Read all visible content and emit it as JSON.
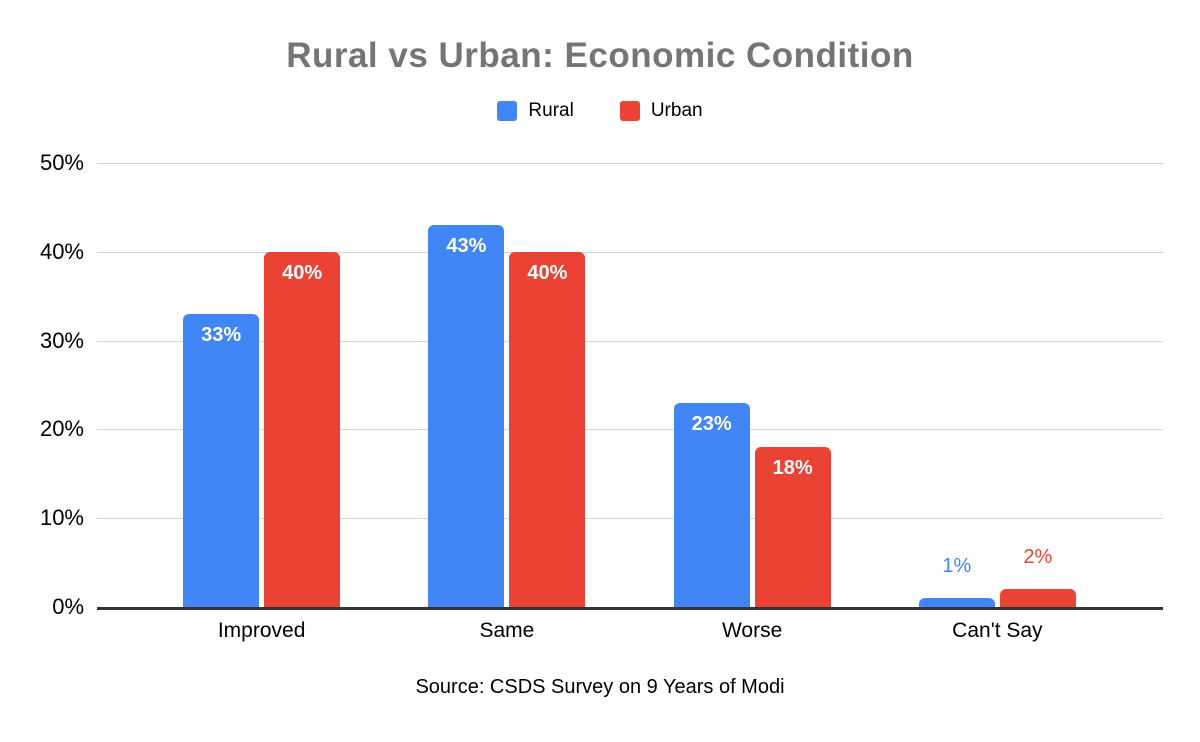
{
  "chart_data": {
    "type": "bar",
    "title": "Rural vs Urban: Economic Condition",
    "categories": [
      "Improved",
      "Same",
      "Worse",
      "Can't Say"
    ],
    "series": [
      {
        "name": "Rural",
        "color": "#4285F4",
        "values": [
          33,
          43,
          23,
          1
        ]
      },
      {
        "name": "Urban",
        "color": "#EA4335",
        "values": [
          40,
          40,
          18,
          2
        ]
      }
    ],
    "value_suffix": "%",
    "ylim": [
      0,
      50
    ],
    "yticks": [
      "0%",
      "10%",
      "20%",
      "30%",
      "40%",
      "50%"
    ],
    "grid": true,
    "legend_position": "top",
    "data_label_inside_color": "#ffffff",
    "outside_label_threshold": 5,
    "title_color": "#757575",
    "gridline_color": "#d5d5d5",
    "baseline_color": "#333333",
    "source": "Source: CSDS Survey on 9 Years of Modi"
  }
}
